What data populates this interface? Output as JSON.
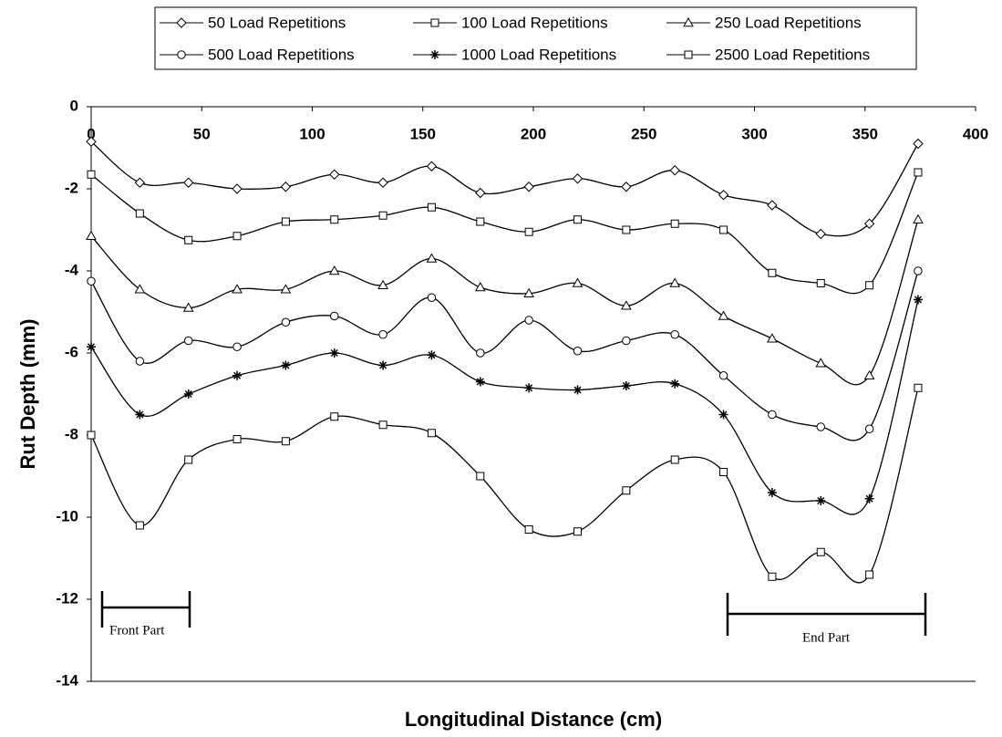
{
  "chart_data": {
    "type": "line",
    "x_label": "Longitudinal Distance (cm)",
    "y_label": "Rut Depth (mm)",
    "x": [
      0,
      22,
      44,
      66,
      88,
      110,
      132,
      154,
      176,
      198,
      220,
      242,
      264,
      286,
      308,
      330,
      352,
      374
    ],
    "xlim": [
      0,
      400
    ],
    "xticks": [
      0,
      50,
      100,
      150,
      200,
      250,
      300,
      350,
      400
    ],
    "ylim": [
      -14,
      0
    ],
    "yticks": [
      0,
      -2,
      -4,
      -6,
      -8,
      -10,
      -12,
      -14
    ],
    "smooth": true,
    "color": "#000000",
    "series": [
      {
        "name": "50 Load Repetitions",
        "marker": "diamond",
        "values": [
          -0.85,
          -1.85,
          -1.85,
          -2.0,
          -1.95,
          -1.65,
          -1.85,
          -1.45,
          -2.1,
          -1.95,
          -1.75,
          -1.95,
          -1.55,
          -2.15,
          -2.4,
          -3.1,
          -2.85,
          -0.9
        ]
      },
      {
        "name": "100 Load Repetitions",
        "marker": "square",
        "values": [
          -1.65,
          -2.6,
          -3.25,
          -3.15,
          -2.8,
          -2.75,
          -2.65,
          -2.45,
          -2.8,
          -3.05,
          -2.75,
          -3.0,
          -2.85,
          -3.0,
          -4.05,
          -4.3,
          -4.35,
          -1.6
        ]
      },
      {
        "name": "250 Load Repetitions",
        "marker": "triangle",
        "values": [
          -3.15,
          -4.45,
          -4.9,
          -4.45,
          -4.45,
          -4.0,
          -4.35,
          -3.7,
          -4.4,
          -4.55,
          -4.3,
          -4.85,
          -4.3,
          -5.1,
          -5.65,
          -6.25,
          -6.55,
          -2.75
        ]
      },
      {
        "name": "500 Load Repetitions",
        "marker": "circle",
        "values": [
          -4.25,
          -6.2,
          -5.7,
          -5.85,
          -5.25,
          -5.1,
          -5.55,
          -4.65,
          -6.0,
          -5.2,
          -5.95,
          -5.7,
          -5.55,
          -6.55,
          -7.5,
          -7.8,
          -7.85,
          -4.0
        ]
      },
      {
        "name": "1000 Load Repetitions",
        "marker": "star",
        "values": [
          -5.85,
          -7.5,
          -7.0,
          -6.55,
          -6.3,
          -6.0,
          -6.3,
          -6.05,
          -6.7,
          -6.85,
          -6.9,
          -6.8,
          -6.75,
          -7.5,
          -9.4,
          -9.6,
          -9.55,
          -4.7
        ]
      },
      {
        "name": "2500 Load Repetitions",
        "marker": "square",
        "values": [
          -8.0,
          -10.2,
          -8.6,
          -8.1,
          -8.15,
          -7.55,
          -7.75,
          -7.95,
          -9.0,
          -10.3,
          -10.35,
          -9.35,
          -8.6,
          -8.9,
          -11.45,
          -10.85,
          -11.4,
          -6.85
        ]
      }
    ],
    "annotations": [
      "Front Part",
      "End Part"
    ]
  }
}
